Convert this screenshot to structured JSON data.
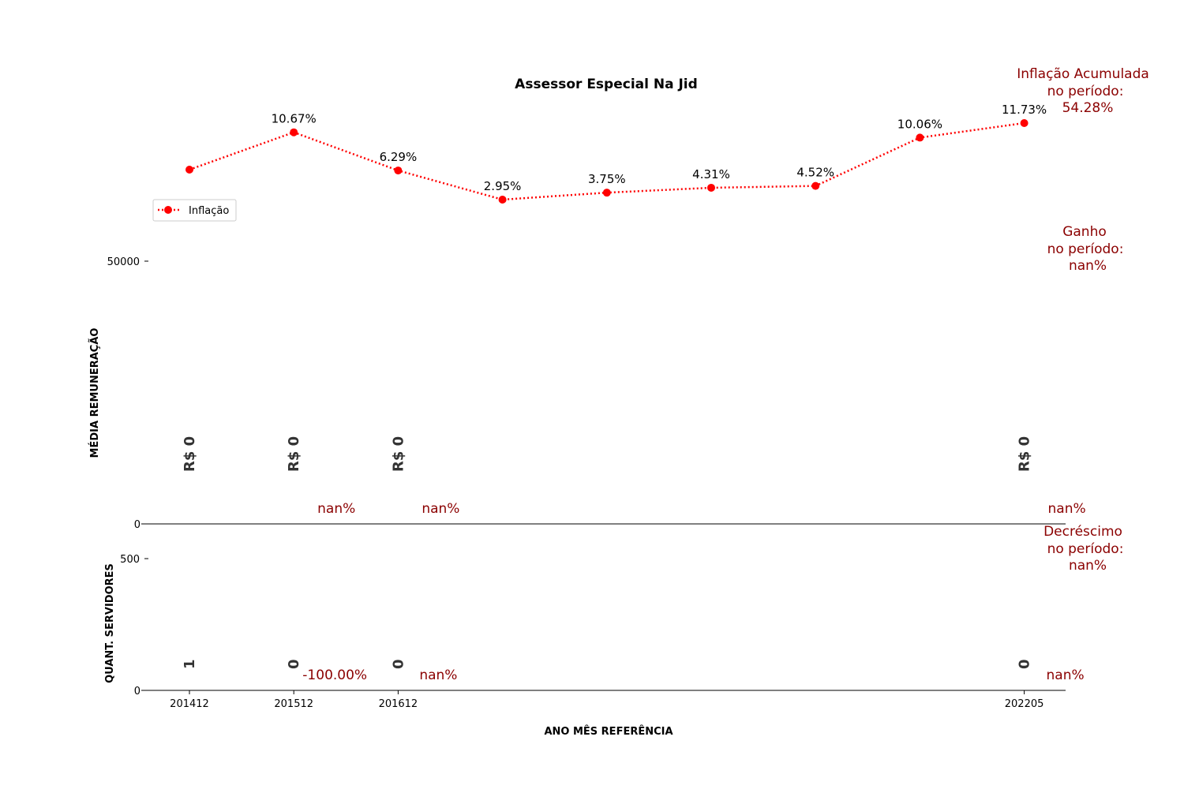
{
  "chart_data": {
    "type": "line",
    "title": "Assessor Especial Na Jid",
    "xlabel": "ANO MÊS REFERÊNCIA",
    "x_ticks": [
      "201412",
      "201512",
      "201612",
      "202205"
    ],
    "panels": {
      "remuneracao": {
        "ylabel": "MÉDIA REMUNERAÇÃO",
        "yticks": [
          "50000",
          "0"
        ],
        "ylim": [
          0,
          50000
        ],
        "values": [
          {
            "x": "201412",
            "value": 0,
            "label": "R$ 0"
          },
          {
            "x": "201512",
            "value": 0,
            "label": "R$ 0"
          },
          {
            "x": "201612",
            "value": 0,
            "label": "R$ 0"
          },
          {
            "x": "202205",
            "value": 0,
            "label": "R$ 0"
          }
        ],
        "change_labels": [
          {
            "after": "201512",
            "text": "nan%"
          },
          {
            "after": "201612",
            "text": "nan%"
          },
          {
            "after": "202205",
            "text": "nan%"
          }
        ]
      },
      "servidores": {
        "ylabel": "QUANT. SERVIDORES",
        "yticks": [
          "500",
          "0"
        ],
        "ylim": [
          0,
          500
        ],
        "values": [
          {
            "x": "201412",
            "value": 1,
            "label": "1"
          },
          {
            "x": "201512",
            "value": 0,
            "label": "0"
          },
          {
            "x": "201612",
            "value": 0,
            "label": "0"
          },
          {
            "x": "202205",
            "value": 0,
            "label": "0"
          }
        ],
        "change_labels": [
          {
            "after": "201512",
            "text": "-100.00%"
          },
          {
            "after": "201612",
            "text": "nan%"
          },
          {
            "after": "202205",
            "text": "nan%"
          }
        ]
      }
    },
    "inflation": {
      "name": "Inflação",
      "color": "#ff0000",
      "values": [
        null,
        10.67,
        6.29,
        2.95,
        3.75,
        4.31,
        4.52,
        10.06,
        11.73
      ],
      "labels": [
        "",
        "10.67%",
        "6.29%",
        "2.95%",
        "3.75%",
        "4.31%",
        "4.52%",
        "10.06%",
        "11.73%"
      ]
    },
    "legend": {
      "position": "upper-left",
      "entries": [
        "Inflação"
      ]
    },
    "annotations": {
      "inflacao": [
        "Inflação Acumulada",
        "no período:",
        "54.28%"
      ],
      "ganho": [
        "Ganho",
        "no período:",
        "nan%"
      ],
      "decrescimo": [
        "Decréscimo",
        "no período:",
        "nan%"
      ]
    },
    "colors": {
      "annotation": "#8b0000",
      "value_label": "#333333",
      "inflation_line": "#ff0000"
    }
  }
}
